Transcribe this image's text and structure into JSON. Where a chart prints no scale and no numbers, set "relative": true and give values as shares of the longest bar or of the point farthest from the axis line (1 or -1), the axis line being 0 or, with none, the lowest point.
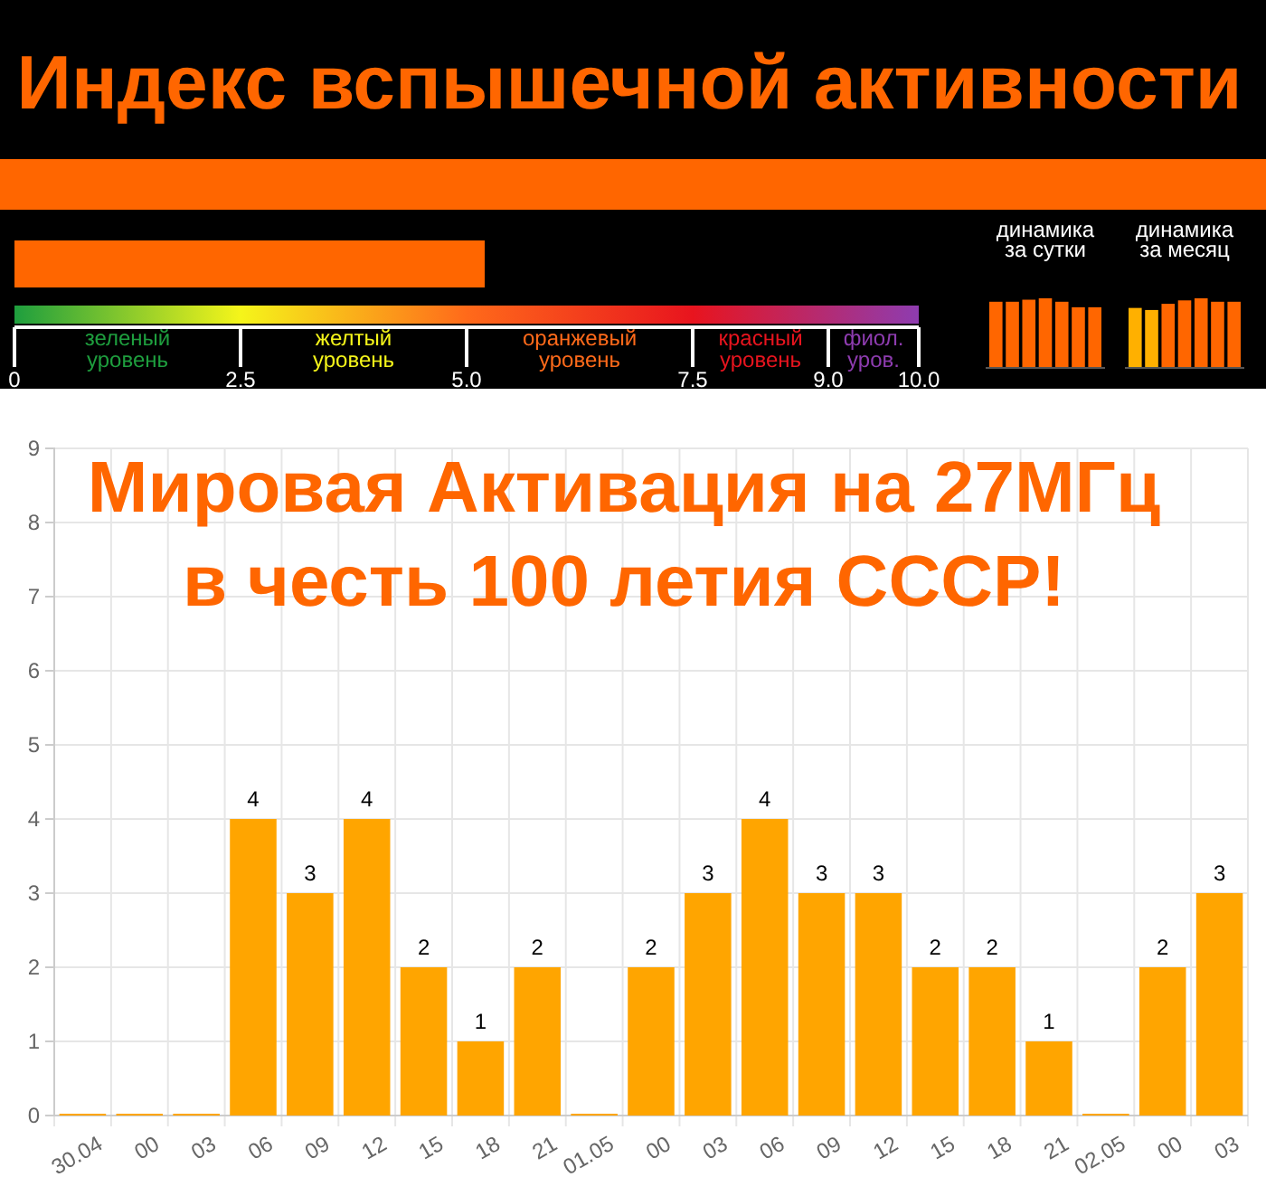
{
  "chart_data": [
    {
      "type": "bar",
      "title": "Индекс вспышечной активности",
      "orientation": "horizontal",
      "categories": [
        null
      ],
      "values": [
        5.2
      ],
      "color": "#ff6600",
      "xlim": [
        0,
        10
      ],
      "xticks": [
        0,
        {
          "value": 2.5,
          "label": "2.5"
        },
        {
          "value": 5,
          "label": "5.0"
        },
        {
          "value": 7.5,
          "label": "7.5"
        },
        {
          "value": 9,
          "label": "9.0"
        },
        {
          "value": 10,
          "label": "10.0"
        }
      ],
      "annotations": [
        "зеленый уровень",
        "желтый уровень",
        "оранжевый уровень",
        "красный уровень",
        "фиол. уров."
      ]
    },
    {
      "type": "bar",
      "title": "динамика за сутки",
      "relative": true,
      "categories": [
        null,
        null,
        null,
        null,
        null,
        null,
        null
      ],
      "values": [
        0.95,
        0.95,
        0.98,
        1,
        0.95,
        0.87,
        0.87
      ],
      "color": "#ff6600"
    },
    {
      "type": "bar",
      "title": "динамика за месяц",
      "relative": true,
      "categories": [
        null,
        null,
        null,
        null,
        null,
        null,
        null
      ],
      "values": [
        0.86,
        0.83,
        0.92,
        0.97,
        1,
        0.95,
        0.95
      ],
      "colors": [
        "#ffb000",
        "#ffb000",
        "#ff6600",
        "#ff6600",
        "#ff6600",
        "#ff6600",
        "#ff6600"
      ]
    },
    {
      "type": "bar",
      "title": "Мировая Активация на 27МГц в честь 100 летия СССР!",
      "categories": [
        "30.04",
        "00",
        "03",
        "06",
        "09",
        "12",
        "15",
        "18",
        "21",
        "01.05",
        "00",
        "03",
        "06",
        "09",
        "12",
        "15",
        "18",
        "21",
        "02.05",
        "00",
        "03"
      ],
      "values": [
        0,
        0,
        0,
        4,
        3,
        4,
        2,
        1,
        2,
        0,
        2,
        3,
        4,
        3,
        3,
        2,
        2,
        1,
        0,
        2,
        3
      ],
      "value_labels": [
        null,
        null,
        null,
        "4",
        "3",
        "4",
        "2",
        "1",
        "2",
        null,
        "2",
        "3",
        "4",
        "3",
        "3",
        "2",
        "2",
        "1",
        null,
        "2",
        "3"
      ],
      "color": "#ffa500",
      "ylim": [
        0,
        9
      ],
      "yticks": [
        0,
        1,
        2,
        3,
        4,
        5,
        6,
        7,
        8,
        9
      ],
      "grid": true
    }
  ]
}
